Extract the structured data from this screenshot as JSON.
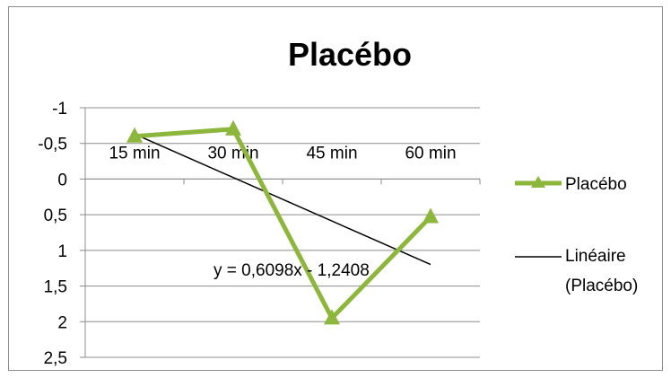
{
  "chart_data": {
    "type": "line",
    "title": "Placébo",
    "categories": [
      "15 min",
      "30 min",
      "45 min",
      "60 min"
    ],
    "y_axis": {
      "reversed": true,
      "ylim": [
        -1,
        2.5
      ],
      "step": 0.5,
      "tick_labels": [
        "-1",
        "-0,5",
        "0",
        "0,5",
        "1",
        "1,5",
        "2",
        "2,5"
      ],
      "grid": true
    },
    "series": [
      {
        "name": "Placébo",
        "values": [
          -0.6,
          -0.7,
          1.95,
          0.53
        ],
        "color": "#8db63c",
        "marker": "triangle"
      }
    ],
    "trendline": {
      "name": "Linéaire (Placébo)",
      "type": "linear",
      "slope": 0.6098,
      "intercept": -1.2408,
      "equation": "y = 0,6098x - 1,2408",
      "color": "#000000"
    },
    "legend": {
      "position": "right",
      "entries": [
        "Placébo",
        "Linéaire",
        "(Placébo)"
      ]
    }
  }
}
